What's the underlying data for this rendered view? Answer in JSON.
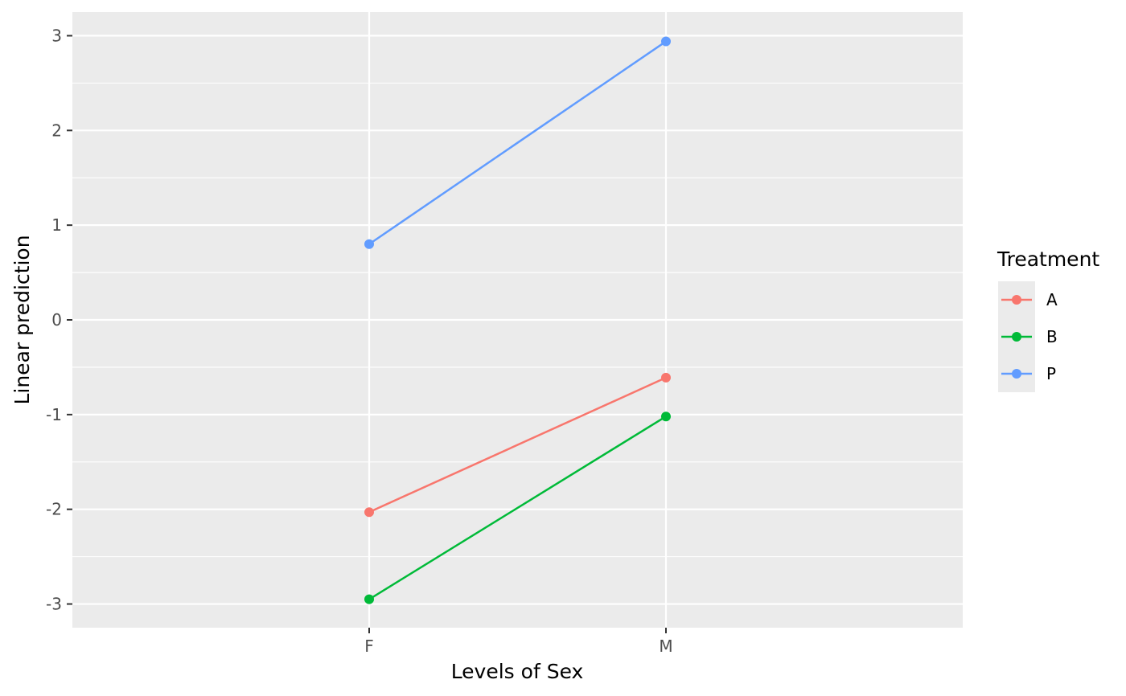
{
  "chart_data": {
    "type": "line",
    "title": "",
    "xlabel": "Levels of Sex",
    "ylabel": "Linear prediction",
    "categories": [
      "F",
      "M"
    ],
    "yticks": [
      3,
      2,
      1,
      0,
      -1,
      -2,
      -3
    ],
    "ytick_labels": [
      "3",
      "2",
      "1",
      "0",
      "-1",
      "-2",
      "-3"
    ],
    "ylim": [
      -3.25,
      3.25
    ],
    "grid": true,
    "legend": {
      "title": "Treatment",
      "position": "right"
    },
    "series": [
      {
        "name": "A",
        "values": [
          -2.03,
          -0.61
        ],
        "color": "#F8766D"
      },
      {
        "name": "B",
        "values": [
          -2.95,
          -1.02
        ],
        "color": "#00BA38"
      },
      {
        "name": "P",
        "values": [
          0.8,
          2.94
        ],
        "color": "#619CFF"
      }
    ],
    "panel_background": "#EBEBEB",
    "grid_color": "#FFFFFF"
  }
}
